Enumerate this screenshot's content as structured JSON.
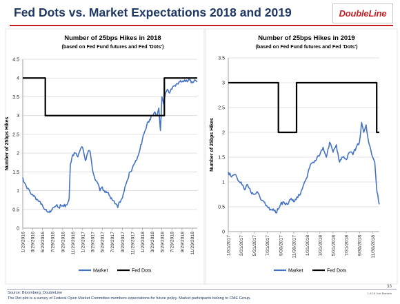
{
  "page": {
    "title": "Fed Dots vs. Market Expectations 2018 and 2019",
    "logo_text": "DoubleLine",
    "footer_source": "Source: Bloomberg; DoubleLine",
    "footer_note": "The Dot plot is a survey of Federal Open Market Committee members  expectations for future policy. Market participants belong to CME Group.",
    "page_number": "33",
    "footer_date": "1-8-19 Just Markets"
  },
  "colors": {
    "title": "#1f3864",
    "accent_red": "#c41e24",
    "market": "#4472c4",
    "fed_dots": "#000000",
    "grid": "#d9d9d9"
  },
  "chart_data": [
    {
      "type": "line",
      "title": "Number of 25bps Hikes in 2018",
      "subtitle": "(based on Fed Fund futures and Fed 'Dots')",
      "ylabel": "Number of 25bps Hikes",
      "xlabel": "",
      "ylim": [
        0,
        4.5
      ],
      "yticks": [
        0,
        0.5,
        1,
        1.5,
        2,
        2.5,
        3,
        3.5,
        4,
        4.5
      ],
      "ytick_labels": [
        "0",
        "0.5",
        "1",
        "1.5",
        "2",
        "2.5",
        "3",
        "3.5",
        "4",
        "4.5"
      ],
      "xlim": [
        "2016-01-29",
        "2018-12-31"
      ],
      "xticks": [
        "2016-01-29",
        "2016-03-29",
        "2016-05-29",
        "2016-07-29",
        "2016-09-29",
        "2016-11-29",
        "2017-01-29",
        "2017-03-29",
        "2017-05-29",
        "2017-07-29",
        "2017-09-29",
        "2017-11-29",
        "2018-01-29",
        "2018-03-29",
        "2018-05-29",
        "2018-07-29",
        "2018-09-29",
        "2018-11-29"
      ],
      "xtick_labels": [
        "1/29/2016",
        "3/29/2016",
        "5/29/2016",
        "7/29/2016",
        "9/29/2016",
        "11/29/2016",
        "1/29/2017",
        "3/29/2017",
        "5/29/2017",
        "7/29/2017",
        "9/29/2017",
        "11/29/2017",
        "1/29/2018",
        "3/29/2018",
        "5/29/2018",
        "7/29/2018",
        "9/29/2018",
        "11/29/2018"
      ],
      "grid": true,
      "legend_position": "bottom",
      "series": [
        {
          "name": "Market",
          "color": "#4472c4",
          "x": [
            "2016-01-29",
            "2016-02-10",
            "2016-02-25",
            "2016-03-15",
            "2016-03-29",
            "2016-04-15",
            "2016-04-30",
            "2016-05-15",
            "2016-05-29",
            "2016-06-10",
            "2016-06-24",
            "2016-07-08",
            "2016-07-22",
            "2016-08-05",
            "2016-08-20",
            "2016-09-05",
            "2016-09-20",
            "2016-10-05",
            "2016-10-20",
            "2016-11-01",
            "2016-11-08",
            "2016-11-15",
            "2016-11-29",
            "2016-12-15",
            "2016-12-31",
            "2017-01-15",
            "2017-01-29",
            "2017-02-15",
            "2017-03-01",
            "2017-03-15",
            "2017-03-29",
            "2017-04-15",
            "2017-05-01",
            "2017-05-15",
            "2017-05-29",
            "2017-06-15",
            "2017-06-30",
            "2017-07-15",
            "2017-07-29",
            "2017-08-15",
            "2017-09-01",
            "2017-09-10",
            "2017-09-29",
            "2017-10-15",
            "2017-10-31",
            "2017-11-15",
            "2017-11-29",
            "2017-12-15",
            "2017-12-31",
            "2018-01-15",
            "2018-01-29",
            "2018-02-15",
            "2018-02-28",
            "2018-03-15",
            "2018-03-29",
            "2018-04-15",
            "2018-04-30",
            "2018-05-10",
            "2018-05-20",
            "2018-05-29",
            "2018-06-10",
            "2018-06-20",
            "2018-07-01",
            "2018-07-15",
            "2018-07-29",
            "2018-08-15",
            "2018-08-31",
            "2018-09-15",
            "2018-09-29",
            "2018-10-15",
            "2018-10-31",
            "2018-11-15",
            "2018-11-29",
            "2018-12-15",
            "2018-12-31"
          ],
          "values": [
            1.35,
            1.2,
            1.05,
            0.95,
            0.9,
            0.82,
            0.75,
            0.7,
            0.6,
            0.5,
            0.45,
            0.42,
            0.48,
            0.55,
            0.6,
            0.55,
            0.6,
            0.58,
            0.62,
            0.7,
            0.8,
            1.7,
            1.95,
            2.0,
            1.9,
            2.1,
            2.15,
            1.8,
            2.0,
            2.05,
            1.6,
            1.3,
            1.2,
            1.0,
            1.1,
            0.95,
            0.95,
            0.85,
            0.75,
            0.65,
            0.55,
            0.7,
            0.8,
            1.1,
            1.3,
            1.5,
            1.6,
            1.75,
            1.9,
            2.1,
            2.35,
            2.6,
            2.8,
            2.9,
            3.0,
            3.1,
            3.0,
            3.2,
            2.6,
            3.5,
            3.3,
            3.6,
            3.7,
            3.6,
            3.7,
            3.8,
            3.85,
            3.9,
            3.9,
            3.95,
            3.9,
            3.95,
            3.9,
            3.95,
            3.9
          ]
        },
        {
          "name": "Fed Dots",
          "color": "#000000",
          "step": true,
          "x": [
            "2016-01-29",
            "2016-06-15",
            "2016-06-15",
            "2018-06-13",
            "2018-06-13",
            "2018-12-31"
          ],
          "values": [
            4,
            4,
            3,
            3,
            4,
            4
          ]
        }
      ]
    },
    {
      "type": "line",
      "title": "Number of 25bps Hikes in 2019",
      "subtitle": "(based on Fed Fund futures and Fed 'Dots')",
      "ylabel": "Number of 25bps Hikes",
      "xlabel": "",
      "ylim": [
        0,
        3.5
      ],
      "yticks": [
        0,
        0.5,
        1,
        1.5,
        2,
        2.5,
        3,
        3.5
      ],
      "ytick_labels": [
        "0",
        "0.5",
        "1",
        "1.5",
        "2",
        "2.5",
        "3",
        "3.5"
      ],
      "xlim": [
        "2017-01-31",
        "2018-12-31"
      ],
      "xticks": [
        "2017-01-31",
        "2017-03-31",
        "2017-05-31",
        "2017-07-31",
        "2017-09-30",
        "2017-11-30",
        "2018-01-31",
        "2018-03-31",
        "2018-05-31",
        "2018-07-31",
        "2018-09-30",
        "2018-11-30"
      ],
      "xtick_labels": [
        "1/31/2017",
        "3/31/2017",
        "5/31/2017",
        "7/31/2017",
        "9/30/2017",
        "11/30/2017",
        "1/31/2018",
        "3/31/2018",
        "5/31/2018",
        "7/31/2018",
        "9/30/2018",
        "11/30/2018"
      ],
      "grid": true,
      "legend_position": "bottom",
      "series": [
        {
          "name": "Market",
          "color": "#4472c4",
          "x": [
            "2017-01-31",
            "2017-02-15",
            "2017-03-01",
            "2017-03-15",
            "2017-03-31",
            "2017-04-15",
            "2017-04-30",
            "2017-05-15",
            "2017-05-31",
            "2017-06-15",
            "2017-06-30",
            "2017-07-15",
            "2017-07-31",
            "2017-08-15",
            "2017-08-31",
            "2017-09-08",
            "2017-09-20",
            "2017-09-30",
            "2017-10-15",
            "2017-10-31",
            "2017-11-15",
            "2017-11-30",
            "2017-12-15",
            "2017-12-31",
            "2018-01-15",
            "2018-01-31",
            "2018-02-15",
            "2018-02-28",
            "2018-03-15",
            "2018-03-31",
            "2018-04-15",
            "2018-04-30",
            "2018-05-15",
            "2018-05-31",
            "2018-06-15",
            "2018-06-30",
            "2018-07-15",
            "2018-07-31",
            "2018-08-15",
            "2018-08-31",
            "2018-09-15",
            "2018-09-30",
            "2018-10-10",
            "2018-10-20",
            "2018-10-31",
            "2018-11-08",
            "2018-11-15",
            "2018-11-30",
            "2018-12-10",
            "2018-12-20",
            "2018-12-31"
          ],
          "values": [
            1.2,
            1.1,
            1.15,
            1.05,
            1.0,
            0.85,
            0.95,
            0.8,
            0.75,
            0.8,
            0.65,
            0.6,
            0.5,
            0.45,
            0.42,
            0.38,
            0.45,
            0.55,
            0.6,
            0.55,
            0.65,
            0.6,
            0.7,
            0.75,
            0.95,
            1.1,
            1.35,
            1.4,
            1.45,
            1.55,
            1.7,
            1.5,
            1.8,
            1.6,
            1.75,
            1.4,
            1.5,
            1.45,
            1.6,
            1.55,
            1.7,
            1.8,
            2.2,
            2.0,
            2.15,
            1.9,
            1.75,
            1.5,
            1.4,
            0.8,
            0.55
          ]
        },
        {
          "name": "Fed Dots",
          "color": "#000000",
          "step": true,
          "x": [
            "2017-01-31",
            "2017-09-20",
            "2017-09-20",
            "2017-12-13",
            "2017-12-13",
            "2018-12-19",
            "2018-12-19",
            "2018-12-31"
          ],
          "values": [
            3,
            3,
            2,
            2,
            3,
            3,
            2,
            2
          ]
        }
      ]
    }
  ]
}
